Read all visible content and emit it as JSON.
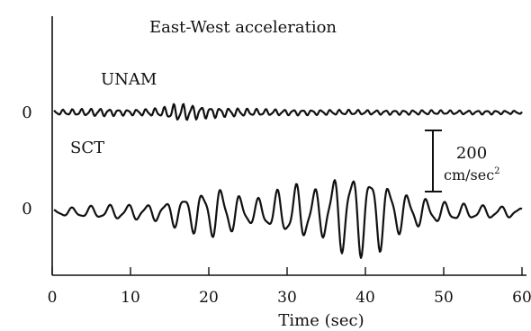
{
  "chart_data": {
    "type": "line",
    "title": "East-West acceleration",
    "xlabel": "Time (sec)",
    "ylabel": "",
    "xlim": [
      0,
      60
    ],
    "xticks": [
      0,
      10,
      20,
      30,
      40,
      50,
      60
    ],
    "grid": false,
    "scale_bar": {
      "value": "200",
      "unit": "cm/sec",
      "unit_sup": "2",
      "amplitude": 200
    },
    "series": [
      {
        "name": "UNAM",
        "baseline_label": "0",
        "t": [
          0,
          2,
          4,
          6,
          8,
          10,
          12,
          14,
          15,
          16,
          17,
          18,
          19,
          20,
          21,
          22,
          24,
          26,
          28,
          30,
          32,
          34,
          36,
          38,
          40,
          42,
          44,
          46,
          48,
          50,
          52,
          54,
          56,
          58,
          60
        ],
        "amp": [
          8,
          10,
          12,
          14,
          12,
          10,
          12,
          16,
          24,
          32,
          30,
          26,
          22,
          20,
          18,
          16,
          14,
          12,
          11,
          10,
          10,
          9,
          9,
          9,
          8,
          8,
          8,
          8,
          8,
          7,
          7,
          7,
          7,
          6,
          6
        ]
      },
      {
        "name": "SCT",
        "baseline_label": "0",
        "t": [
          0,
          4,
          8,
          12,
          14,
          16,
          18,
          20,
          22,
          24,
          26,
          28,
          30,
          32,
          34,
          36,
          38,
          40,
          42,
          44,
          46,
          48,
          50,
          54,
          58,
          60
        ],
        "amp": [
          10,
          20,
          26,
          28,
          32,
          55,
          70,
          85,
          90,
          55,
          45,
          65,
          90,
          100,
          80,
          130,
          150,
          150,
          130,
          80,
          60,
          45,
          35,
          25,
          20,
          15
        ]
      }
    ]
  }
}
